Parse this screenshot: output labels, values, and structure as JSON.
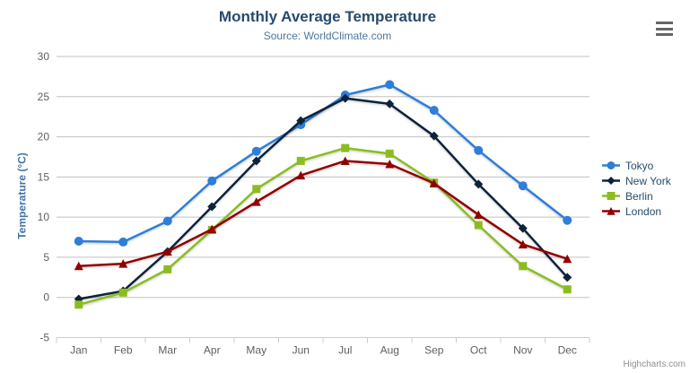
{
  "chart_data": {
    "type": "line",
    "title": "Monthly Average Temperature",
    "subtitle": "Source: WorldClimate.com",
    "categories": [
      "Jan",
      "Feb",
      "Mar",
      "Apr",
      "May",
      "Jun",
      "Jul",
      "Aug",
      "Sep",
      "Oct",
      "Nov",
      "Dec"
    ],
    "series": [
      {
        "name": "Tokyo",
        "color": "#2f7ed8",
        "marker": "circle",
        "values": [
          7.0,
          6.9,
          9.5,
          14.5,
          18.2,
          21.5,
          25.2,
          26.5,
          23.3,
          18.3,
          13.9,
          9.6
        ]
      },
      {
        "name": "New York",
        "color": "#0d233a",
        "marker": "diamond",
        "values": [
          -0.2,
          0.8,
          5.7,
          11.3,
          17.0,
          22.0,
          24.8,
          24.1,
          20.1,
          14.1,
          8.6,
          2.5
        ]
      },
      {
        "name": "Berlin",
        "color": "#8bbc21",
        "marker": "square",
        "values": [
          -0.9,
          0.6,
          3.5,
          8.4,
          13.5,
          17.0,
          18.6,
          17.9,
          14.3,
          9.0,
          3.9,
          1.0
        ]
      },
      {
        "name": "London",
        "color": "#910000",
        "marker": "triangle",
        "values": [
          3.9,
          4.2,
          5.7,
          8.5,
          11.9,
          15.2,
          17.0,
          16.6,
          14.2,
          10.3,
          6.6,
          4.8
        ]
      }
    ],
    "xlabel": "",
    "ylabel": "Temperature (°C)",
    "ylim": [
      -5,
      30
    ],
    "ytick_step": 5,
    "yticks": [
      -5,
      0,
      5,
      10,
      15,
      20,
      25,
      30
    ],
    "grid": true,
    "legend_position": "right"
  },
  "footer": {
    "credit": "Highcharts.com"
  },
  "style": {
    "title_color": "#274b6d",
    "subtitle_color": "#4d759e",
    "axis_label_color": "#606060",
    "axis_title_color": "#4572a7",
    "legend_text_color": "#274b6d",
    "grid_color": "#c0c0c0",
    "axis_line_color": "#c0d0e0",
    "credit_color": "#909090",
    "export_icon_color": "#666666",
    "background_color": "#ffffff"
  }
}
